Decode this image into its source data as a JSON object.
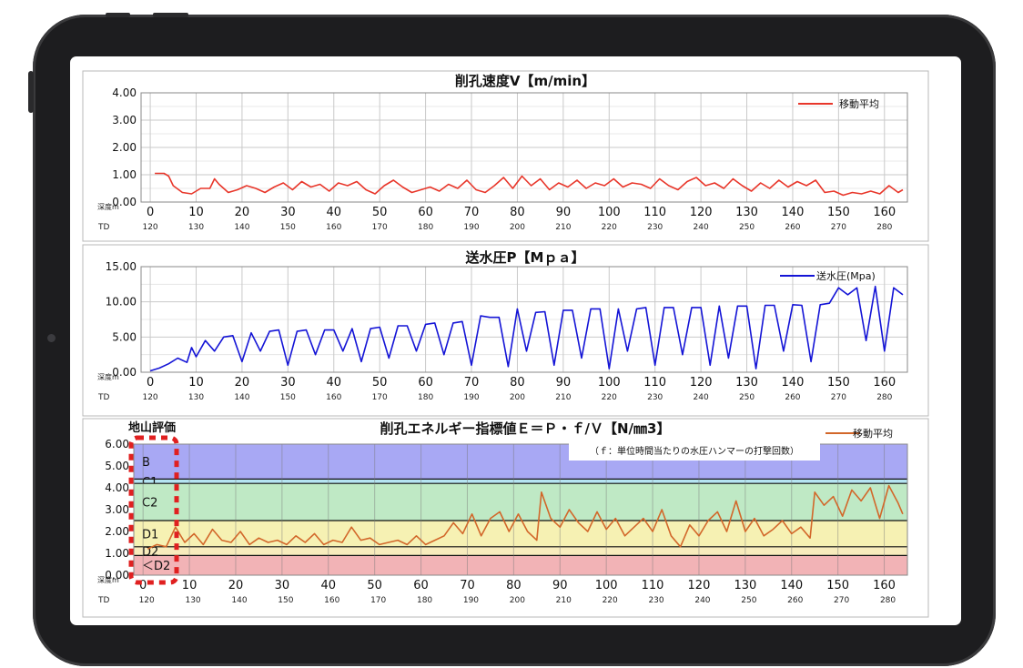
{
  "chart_data": [
    {
      "type": "line",
      "title": "削孔速度V【m/min】",
      "legend": "移動平均",
      "xlabel": "深度m",
      "td_label": "TD",
      "ylim": [
        0,
        4
      ],
      "yticks": [
        "4.00",
        "3.00",
        "2.00",
        "1.00",
        "0.00"
      ],
      "xlim": [
        -2,
        165
      ],
      "xticks": [
        "0",
        "10",
        "20",
        "30",
        "40",
        "50",
        "60",
        "70",
        "80",
        "90",
        "100",
        "110",
        "120",
        "130",
        "140",
        "150",
        "160"
      ],
      "td_ticks": [
        "120",
        "130",
        "140",
        "150",
        "160",
        "170",
        "180",
        "190",
        "200",
        "210",
        "220",
        "230",
        "240",
        "250",
        "260",
        "270",
        "280"
      ],
      "color": "#e8362a",
      "series": [
        {
          "name": "移動平均",
          "x": [
            1,
            3,
            4,
            5,
            7,
            9,
            11,
            13,
            14,
            15,
            17,
            19,
            21,
            23,
            25,
            27,
            29,
            31,
            33,
            35,
            37,
            39,
            41,
            43,
            45,
            47,
            49,
            51,
            53,
            55,
            57,
            59,
            61,
            63,
            65,
            67,
            69,
            71,
            73,
            75,
            77,
            79,
            81,
            83,
            85,
            87,
            89,
            91,
            93,
            95,
            97,
            99,
            101,
            103,
            105,
            107,
            109,
            111,
            113,
            115,
            117,
            119,
            121,
            123,
            125,
            127,
            129,
            131,
            133,
            135,
            137,
            139,
            141,
            143,
            145,
            147,
            149,
            151,
            153,
            155,
            157,
            159,
            161,
            163,
            164
          ],
          "y": [
            1.05,
            1.05,
            0.95,
            0.6,
            0.35,
            0.3,
            0.5,
            0.5,
            0.85,
            0.65,
            0.35,
            0.45,
            0.6,
            0.5,
            0.35,
            0.55,
            0.7,
            0.45,
            0.75,
            0.55,
            0.65,
            0.4,
            0.7,
            0.6,
            0.75,
            0.45,
            0.3,
            0.6,
            0.8,
            0.55,
            0.35,
            0.45,
            0.55,
            0.4,
            0.65,
            0.5,
            0.8,
            0.45,
            0.35,
            0.6,
            0.9,
            0.5,
            0.95,
            0.6,
            0.85,
            0.45,
            0.7,
            0.55,
            0.8,
            0.5,
            0.7,
            0.6,
            0.85,
            0.55,
            0.7,
            0.65,
            0.5,
            0.85,
            0.6,
            0.45,
            0.75,
            0.9,
            0.6,
            0.7,
            0.5,
            0.85,
            0.6,
            0.4,
            0.7,
            0.5,
            0.8,
            0.55,
            0.75,
            0.6,
            0.8,
            0.35,
            0.4,
            0.25,
            0.35,
            0.3,
            0.4,
            0.3,
            0.6,
            0.35,
            0.45
          ]
        }
      ]
    },
    {
      "type": "line",
      "title": "送水圧P【Mｐａ】",
      "legend": "送水圧(Mpa)",
      "xlabel": "深度m",
      "td_label": "TD",
      "ylim": [
        0,
        15
      ],
      "yticks": [
        "15.00",
        "10.00",
        "5.00",
        "0.00"
      ],
      "xlim": [
        -2,
        165
      ],
      "xticks": [
        "0",
        "10",
        "20",
        "30",
        "40",
        "50",
        "60",
        "70",
        "80",
        "90",
        "100",
        "110",
        "120",
        "130",
        "140",
        "150",
        "160"
      ],
      "td_ticks": [
        "120",
        "130",
        "140",
        "150",
        "160",
        "170",
        "180",
        "190",
        "200",
        "210",
        "220",
        "230",
        "240",
        "250",
        "260",
        "270",
        "280"
      ],
      "color": "#1414d6",
      "series": [
        {
          "name": "送水圧(Mpa)",
          "x": [
            0,
            2,
            4,
            6,
            8,
            9,
            10,
            12,
            14,
            16,
            18,
            20,
            22,
            24,
            26,
            28,
            30,
            32,
            34,
            36,
            38,
            40,
            42,
            44,
            46,
            48,
            50,
            52,
            54,
            56,
            58,
            60,
            62,
            64,
            66,
            68,
            70,
            72,
            74,
            76,
            78,
            80,
            82,
            84,
            86,
            88,
            90,
            92,
            94,
            96,
            98,
            100,
            102,
            104,
            106,
            108,
            110,
            112,
            114,
            116,
            118,
            120,
            122,
            124,
            126,
            128,
            130,
            132,
            134,
            136,
            138,
            140,
            142,
            144,
            146,
            148,
            150,
            152,
            154,
            156,
            158,
            160,
            162,
            164
          ],
          "y": [
            0.2,
            0.6,
            1.2,
            2.0,
            1.4,
            3.5,
            2.2,
            4.5,
            3.0,
            5.0,
            5.2,
            1.5,
            5.6,
            3.0,
            5.8,
            6.0,
            1.0,
            5.8,
            6.0,
            2.5,
            6.0,
            6.0,
            3.0,
            6.2,
            1.5,
            6.2,
            6.4,
            2.0,
            6.6,
            6.6,
            3.0,
            6.8,
            7.0,
            2.5,
            7.0,
            7.2,
            1.0,
            8.0,
            7.8,
            7.8,
            0.8,
            9.0,
            3.0,
            8.5,
            8.6,
            1.0,
            8.8,
            8.8,
            2.0,
            9.0,
            9.0,
            0.5,
            9.0,
            3.0,
            9.0,
            9.2,
            1.0,
            9.2,
            9.2,
            2.5,
            9.2,
            9.2,
            1.0,
            9.4,
            2.0,
            9.4,
            9.4,
            0.5,
            9.5,
            9.5,
            3.0,
            9.6,
            9.5,
            1.5,
            9.6,
            9.8,
            12.0,
            11.0,
            12.0,
            4.5,
            12.2,
            3.0,
            12.0,
            11.0
          ]
        }
      ]
    },
    {
      "type": "line",
      "title": "削孔エネルギー指標値Ｅ＝Ｐ・ｆ/Ｖ【N/㎜3】",
      "note": "（ｆ：単位時間当たりの水圧ハンマーの打撃回数）",
      "legend": "移動平均",
      "eval_label": "地山評価",
      "xlabel": "深度m",
      "td_label": "TD",
      "ylim": [
        0,
        6
      ],
      "yticks": [
        "6.00",
        "5.00",
        "4.00",
        "3.00",
        "2.00",
        "1.00",
        "0.00"
      ],
      "xlim": [
        -2,
        165
      ],
      "xticks": [
        "0",
        "10",
        "20",
        "30",
        "40",
        "50",
        "60",
        "70",
        "80",
        "90",
        "100",
        "110",
        "120",
        "130",
        "140",
        "150",
        "160"
      ],
      "td_ticks": [
        "120",
        "130",
        "140",
        "150",
        "160",
        "170",
        "180",
        "190",
        "200",
        "210",
        "220",
        "230",
        "240",
        "250",
        "260",
        "270",
        "280"
      ],
      "color": "#d2672a",
      "bands": [
        {
          "label": "B",
          "from": 4.4,
          "to": 6,
          "color": "#a8a8f4"
        },
        {
          "label": "C1",
          "from": 4.2,
          "to": 4.4,
          "color": "#b5e4f2"
        },
        {
          "label": "C2",
          "from": 2.5,
          "to": 4.2,
          "color": "#bfe9c5"
        },
        {
          "label": "D1",
          "from": 1.3,
          "to": 2.5,
          "color": "#f6f1b3"
        },
        {
          "label": "D2",
          "from": 0.9,
          "to": 1.3,
          "color": "#f8ecbd"
        },
        {
          "label": "＜D2",
          "from": 0,
          "to": 0.9,
          "color": "#f2b3b6"
        }
      ],
      "series": [
        {
          "name": "移動平均",
          "x": [
            1,
            3,
            5,
            7,
            9,
            11,
            13,
            15,
            17,
            19,
            21,
            23,
            25,
            27,
            29,
            31,
            33,
            35,
            37,
            39,
            41,
            43,
            45,
            47,
            49,
            51,
            53,
            55,
            57,
            59,
            61,
            63,
            65,
            67,
            69,
            71,
            73,
            75,
            77,
            79,
            81,
            83,
            85,
            86,
            88,
            90,
            92,
            94,
            96,
            98,
            100,
            102,
            104,
            106,
            108,
            110,
            112,
            114,
            116,
            118,
            120,
            122,
            124,
            126,
            128,
            130,
            132,
            134,
            136,
            138,
            140,
            142,
            144,
            145,
            147,
            149,
            151,
            153,
            155,
            157,
            159,
            161,
            163,
            164
          ],
          "y": [
            1.2,
            1.4,
            1.3,
            2.2,
            1.5,
            1.9,
            1.4,
            2.1,
            1.6,
            1.5,
            2.0,
            1.4,
            1.7,
            1.5,
            1.6,
            1.4,
            1.8,
            1.5,
            1.9,
            1.4,
            1.6,
            1.5,
            2.2,
            1.6,
            1.7,
            1.4,
            1.5,
            1.6,
            1.4,
            1.8,
            1.4,
            1.6,
            1.8,
            2.4,
            1.9,
            2.8,
            1.8,
            2.6,
            2.9,
            2.0,
            2.8,
            2.0,
            1.6,
            3.8,
            2.6,
            2.2,
            3.0,
            2.4,
            2.0,
            2.9,
            2.1,
            2.6,
            1.8,
            2.2,
            2.6,
            2.0,
            3.0,
            1.8,
            1.3,
            2.3,
            1.8,
            2.5,
            2.9,
            2.0,
            3.4,
            2.0,
            2.6,
            1.8,
            2.1,
            2.5,
            1.9,
            2.2,
            1.7,
            3.8,
            3.2,
            3.6,
            2.7,
            3.9,
            3.4,
            4.0,
            2.6,
            4.1,
            3.3,
            2.8
          ]
        }
      ]
    }
  ]
}
